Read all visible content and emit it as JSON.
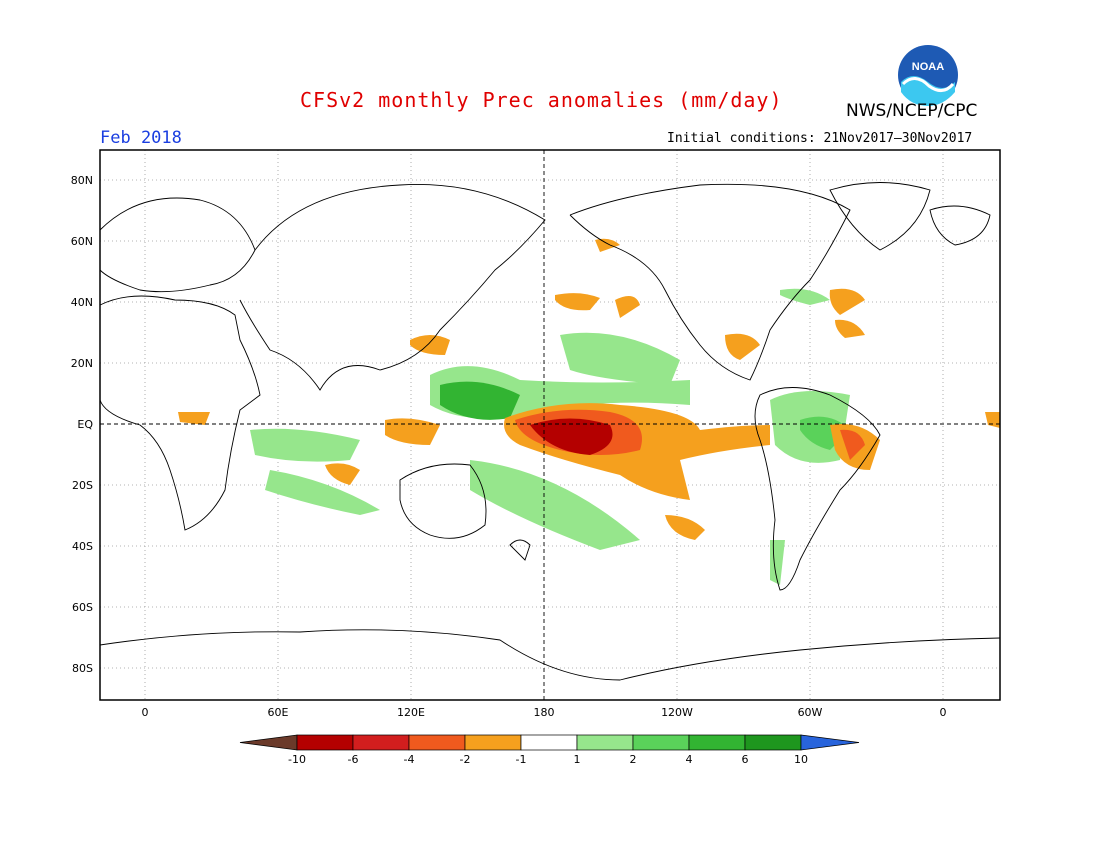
{
  "header": {
    "title": "CFSv2 monthly Prec anomalies (mm/day)",
    "agency": "NWS/NCEP/CPC",
    "logo_text": "NOAA",
    "month": "Feb 2018",
    "initial_conditions": "Initial conditions: 21Nov2017–30Nov2017"
  },
  "map": {
    "lat_labels": [
      "80N",
      "60N",
      "40N",
      "20N",
      "EQ",
      "20S",
      "40S",
      "60S",
      "80S"
    ],
    "lon_labels": [
      "0",
      "60E",
      "120E",
      "180",
      "120W",
      "60W",
      "0"
    ]
  },
  "legend": {
    "labels": [
      "-10",
      "-6",
      "-4",
      "-2",
      "-1",
      "1",
      "2",
      "4",
      "6",
      "10"
    ],
    "colors": [
      "#6b3a2a",
      "#b40000",
      "#d21e1e",
      "#f05a1e",
      "#f5a01e",
      "#ffffff",
      "#96e68c",
      "#5ad25a",
      "#32b432",
      "#1e961e",
      "#2864dc"
    ]
  }
}
